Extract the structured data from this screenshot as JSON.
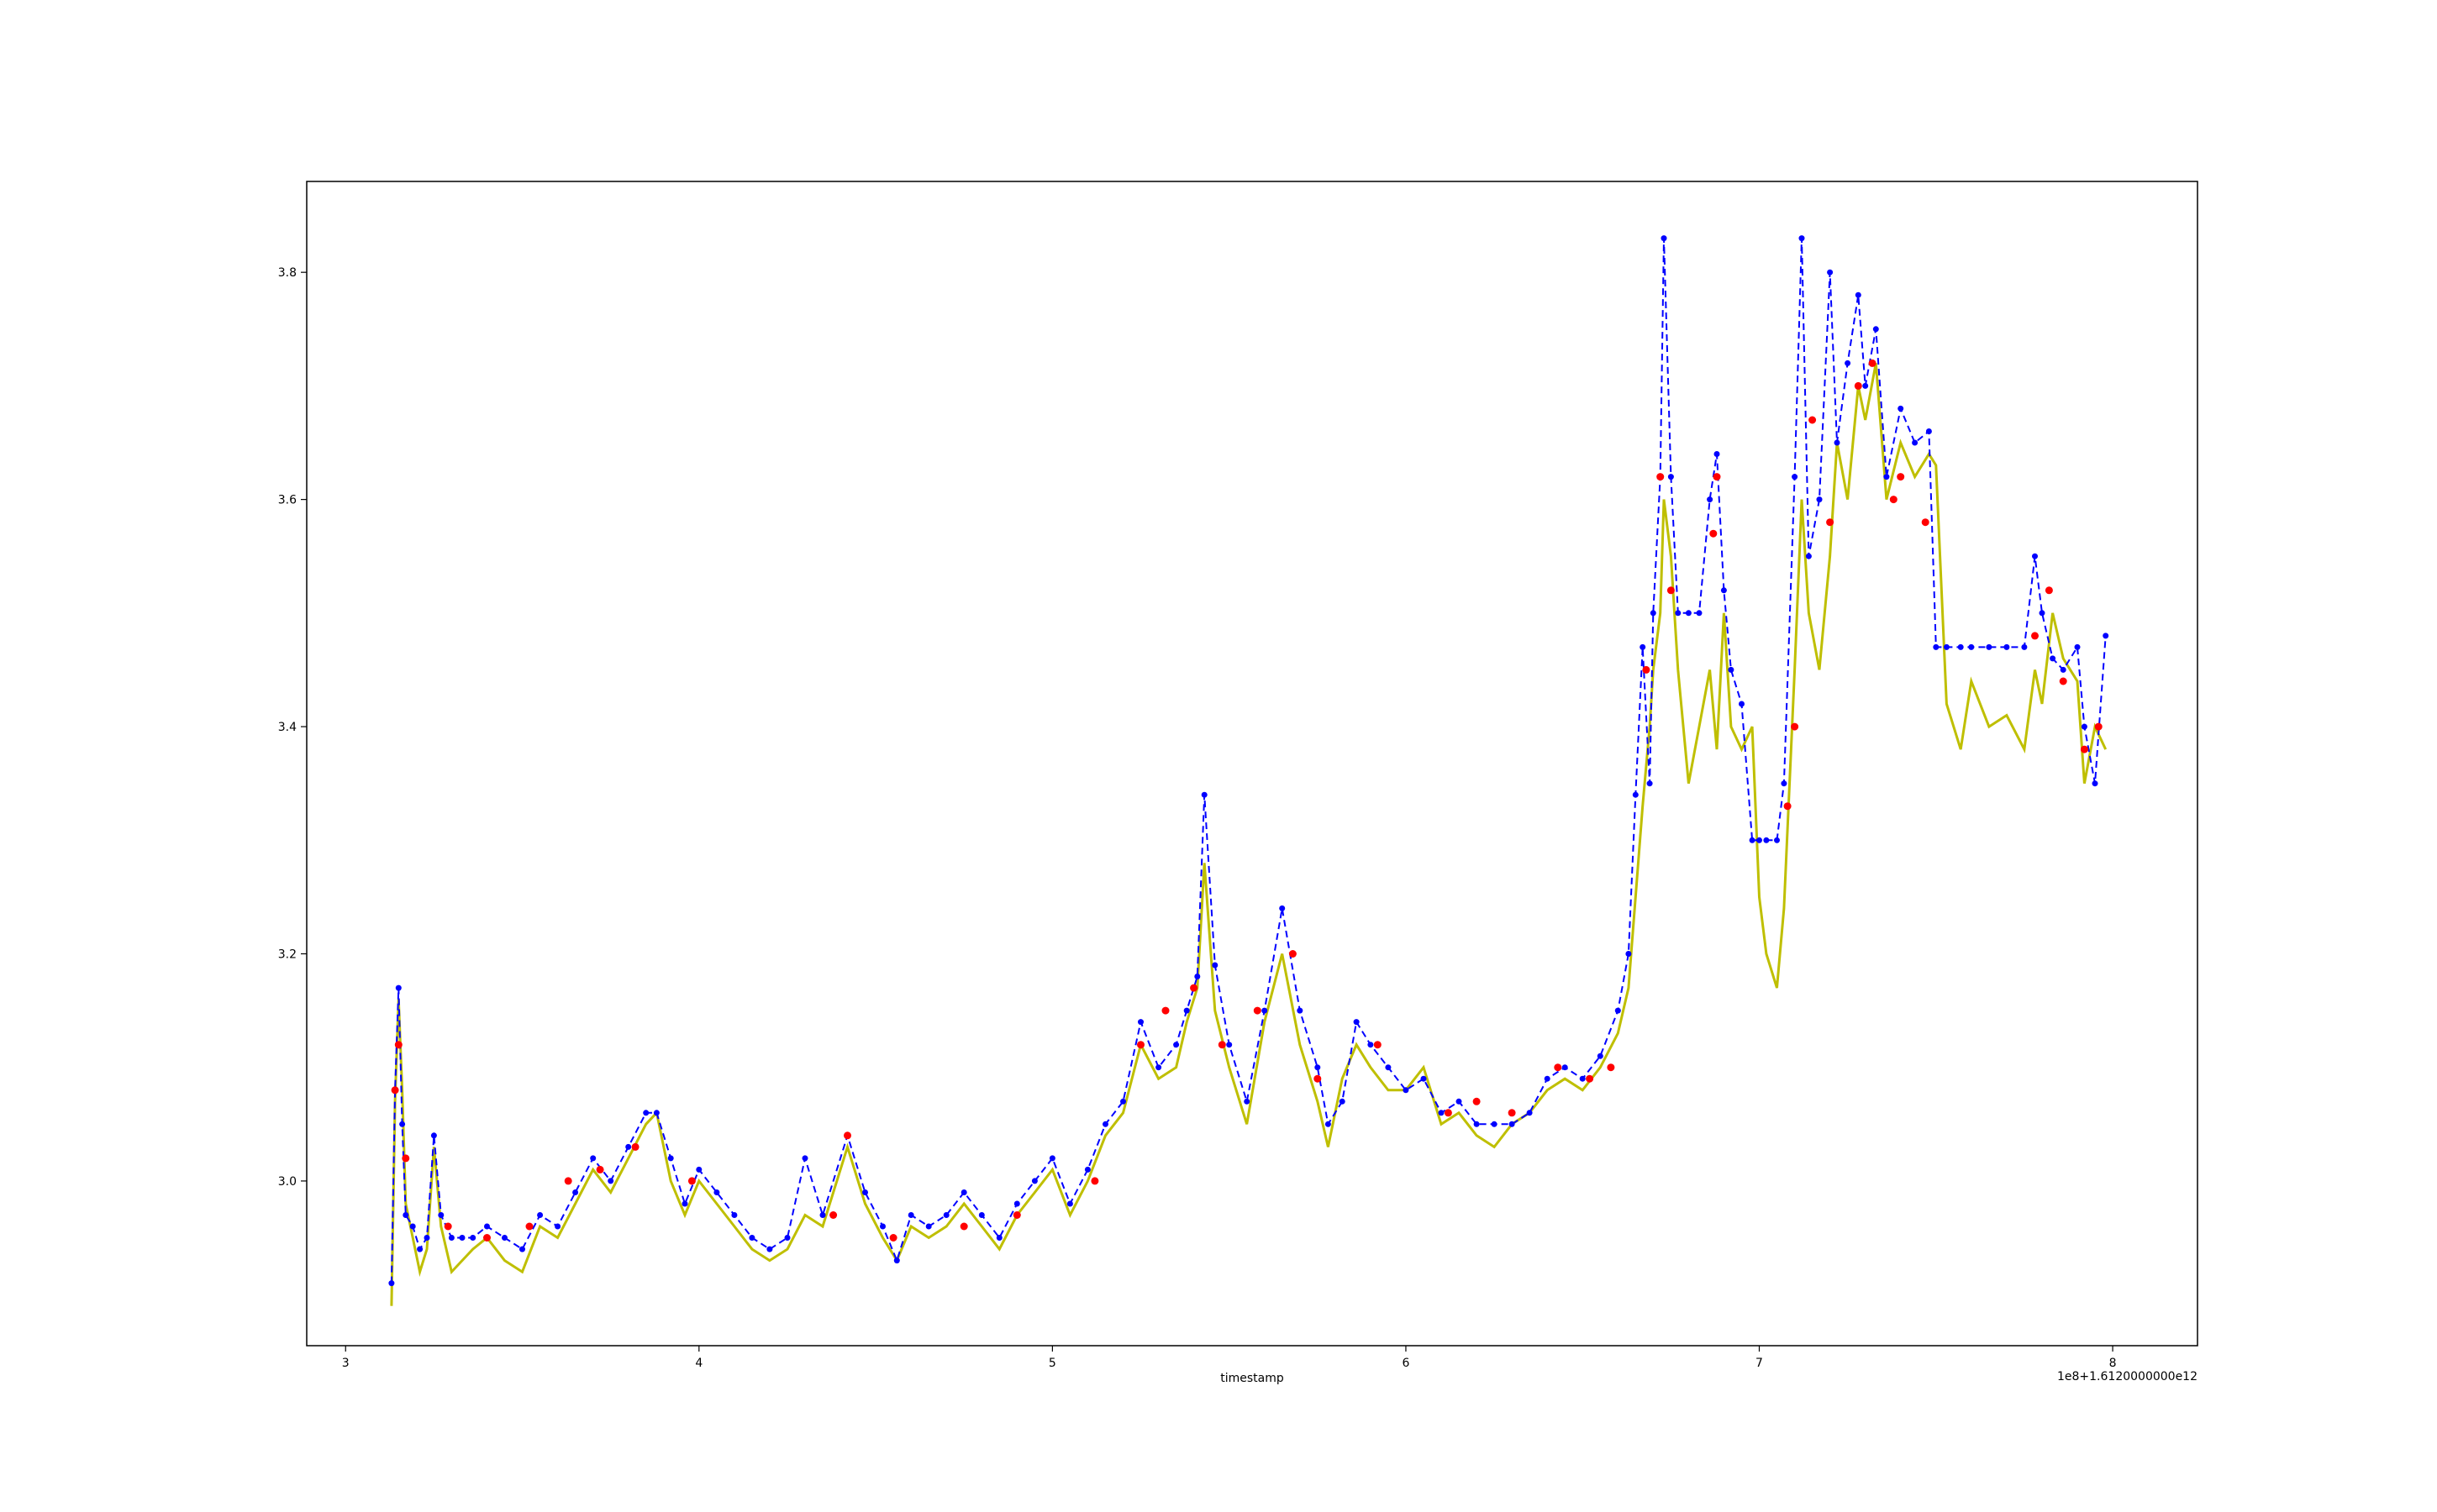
{
  "chart_data": {
    "type": "line",
    "title": "",
    "xlabel": "timestamp",
    "ylabel": "",
    "x_offset_label": "1e8+1.6120000000e12",
    "xlim": [
      2.89,
      8.24
    ],
    "ylim": [
      2.855,
      3.88
    ],
    "x_ticks": [
      3,
      4,
      5,
      6,
      7,
      8
    ],
    "x_tick_labels": [
      "3",
      "4",
      "5",
      "6",
      "7",
      "8"
    ],
    "y_ticks": [
      3.0,
      3.2,
      3.4,
      3.6,
      3.8
    ],
    "y_tick_labels": [
      "3.0",
      "3.2",
      "3.4",
      "3.6",
      "3.8"
    ],
    "grid": false,
    "legend": "none",
    "colors": {
      "raw": "#bfbf00",
      "stepped": "#0000ff",
      "red_markers": "#ff0000"
    },
    "series": [
      {
        "style": "solid",
        "color": "#bfbf00",
        "x": [
          3.13,
          3.14,
          3.15,
          3.16,
          3.17,
          3.19,
          3.21,
          3.23,
          3.25,
          3.27,
          3.3,
          3.33,
          3.36,
          3.4,
          3.45,
          3.5,
          3.55,
          3.6,
          3.65,
          3.7,
          3.75,
          3.8,
          3.85,
          3.88,
          3.92,
          3.96,
          4.0,
          4.05,
          4.1,
          4.15,
          4.2,
          4.25,
          4.3,
          4.35,
          4.42,
          4.47,
          4.52,
          4.56,
          4.6,
          4.65,
          4.7,
          4.75,
          4.8,
          4.85,
          4.9,
          4.95,
          5.0,
          5.05,
          5.1,
          5.15,
          5.2,
          5.25,
          5.3,
          5.35,
          5.38,
          5.41,
          5.43,
          5.46,
          5.5,
          5.55,
          5.6,
          5.65,
          5.7,
          5.75,
          5.78,
          5.82,
          5.86,
          5.9,
          5.95,
          6.0,
          6.05,
          6.1,
          6.15,
          6.2,
          6.25,
          6.3,
          6.35,
          6.4,
          6.45,
          6.5,
          6.55,
          6.6,
          6.63,
          6.65,
          6.67,
          6.69,
          6.7,
          6.72,
          6.73,
          6.75,
          6.77,
          6.8,
          6.83,
          6.86,
          6.88,
          6.9,
          6.92,
          6.95,
          6.98,
          7.0,
          7.02,
          7.05,
          7.07,
          7.1,
          7.12,
          7.14,
          7.17,
          7.2,
          7.22,
          7.25,
          7.28,
          7.3,
          7.33,
          7.36,
          7.4,
          7.44,
          7.48,
          7.5,
          7.53,
          7.57,
          7.6,
          7.65,
          7.7,
          7.75,
          7.78,
          7.8,
          7.83,
          7.86,
          7.9,
          7.92,
          7.95,
          7.98
        ],
        "y": [
          2.89,
          3.07,
          3.16,
          3.08,
          2.98,
          2.95,
          2.92,
          2.94,
          3.03,
          2.96,
          2.92,
          2.93,
          2.94,
          2.95,
          2.93,
          2.92,
          2.96,
          2.95,
          2.98,
          3.01,
          2.99,
          3.02,
          3.05,
          3.06,
          3.0,
          2.97,
          3.0,
          2.98,
          2.96,
          2.94,
          2.93,
          2.94,
          2.97,
          2.96,
          3.03,
          2.98,
          2.95,
          2.93,
          2.96,
          2.95,
          2.96,
          2.98,
          2.96,
          2.94,
          2.97,
          2.99,
          3.01,
          2.97,
          3.0,
          3.04,
          3.06,
          3.12,
          3.09,
          3.1,
          3.14,
          3.17,
          3.28,
          3.15,
          3.1,
          3.05,
          3.14,
          3.2,
          3.12,
          3.07,
          3.03,
          3.09,
          3.12,
          3.1,
          3.08,
          3.08,
          3.1,
          3.05,
          3.06,
          3.04,
          3.03,
          3.05,
          3.06,
          3.08,
          3.09,
          3.08,
          3.1,
          3.13,
          3.17,
          3.25,
          3.33,
          3.4,
          3.45,
          3.5,
          3.6,
          3.55,
          3.45,
          3.35,
          3.4,
          3.45,
          3.38,
          3.5,
          3.4,
          3.38,
          3.4,
          3.25,
          3.2,
          3.17,
          3.24,
          3.45,
          3.6,
          3.5,
          3.45,
          3.55,
          3.65,
          3.6,
          3.7,
          3.67,
          3.72,
          3.6,
          3.65,
          3.62,
          3.64,
          3.63,
          3.42,
          3.38,
          3.44,
          3.4,
          3.41,
          3.38,
          3.45,
          3.42,
          3.5,
          3.46,
          3.44,
          3.35,
          3.4,
          3.38
        ]
      },
      {
        "style": "dashed",
        "color": "#0000ff",
        "marker": "dot",
        "x": [
          3.13,
          3.14,
          3.15,
          3.16,
          3.17,
          3.19,
          3.21,
          3.23,
          3.25,
          3.27,
          3.3,
          3.33,
          3.36,
          3.4,
          3.45,
          3.5,
          3.55,
          3.6,
          3.65,
          3.7,
          3.75,
          3.8,
          3.85,
          3.88,
          3.92,
          3.96,
          4.0,
          4.05,
          4.1,
          4.15,
          4.2,
          4.25,
          4.3,
          4.35,
          4.42,
          4.47,
          4.52,
          4.56,
          4.6,
          4.65,
          4.7,
          4.75,
          4.8,
          4.85,
          4.9,
          4.95,
          5.0,
          5.05,
          5.1,
          5.15,
          5.2,
          5.25,
          5.3,
          5.35,
          5.38,
          5.41,
          5.43,
          5.46,
          5.5,
          5.55,
          5.6,
          5.65,
          5.7,
          5.75,
          5.78,
          5.82,
          5.86,
          5.9,
          5.95,
          6.0,
          6.05,
          6.1,
          6.15,
          6.2,
          6.25,
          6.3,
          6.35,
          6.4,
          6.45,
          6.5,
          6.55,
          6.6,
          6.63,
          6.65,
          6.67,
          6.69,
          6.7,
          6.72,
          6.73,
          6.75,
          6.77,
          6.8,
          6.83,
          6.86,
          6.88,
          6.9,
          6.92,
          6.95,
          6.98,
          7.0,
          7.02,
          7.05,
          7.07,
          7.1,
          7.12,
          7.14,
          7.17,
          7.2,
          7.22,
          7.25,
          7.28,
          7.3,
          7.33,
          7.36,
          7.4,
          7.44,
          7.48,
          7.5,
          7.53,
          7.57,
          7.6,
          7.65,
          7.7,
          7.75,
          7.78,
          7.8,
          7.83,
          7.86,
          7.9,
          7.92,
          7.95,
          7.98
        ],
        "y": [
          2.91,
          3.08,
          3.17,
          3.05,
          2.97,
          2.96,
          2.94,
          2.95,
          3.04,
          2.97,
          2.95,
          2.95,
          2.95,
          2.96,
          2.95,
          2.94,
          2.97,
          2.96,
          2.99,
          3.02,
          3.0,
          3.03,
          3.06,
          3.06,
          3.02,
          2.98,
          3.01,
          2.99,
          2.97,
          2.95,
          2.94,
          2.95,
          3.02,
          2.97,
          3.04,
          2.99,
          2.96,
          2.93,
          2.97,
          2.96,
          2.97,
          2.99,
          2.97,
          2.95,
          2.98,
          3.0,
          3.02,
          2.98,
          3.01,
          3.05,
          3.07,
          3.14,
          3.1,
          3.12,
          3.15,
          3.18,
          3.34,
          3.19,
          3.12,
          3.07,
          3.15,
          3.24,
          3.15,
          3.1,
          3.05,
          3.07,
          3.14,
          3.12,
          3.1,
          3.08,
          3.09,
          3.06,
          3.07,
          3.05,
          3.05,
          3.05,
          3.06,
          3.09,
          3.1,
          3.09,
          3.11,
          3.15,
          3.2,
          3.34,
          3.47,
          3.35,
          3.5,
          3.62,
          3.83,
          3.62,
          3.5,
          3.5,
          3.5,
          3.6,
          3.64,
          3.52,
          3.45,
          3.42,
          3.3,
          3.3,
          3.3,
          3.3,
          3.35,
          3.62,
          3.83,
          3.55,
          3.6,
          3.8,
          3.65,
          3.72,
          3.78,
          3.7,
          3.75,
          3.62,
          3.68,
          3.65,
          3.66,
          3.47,
          3.47,
          3.47,
          3.47,
          3.47,
          3.47,
          3.47,
          3.55,
          3.5,
          3.46,
          3.45,
          3.47,
          3.4,
          3.35,
          3.48
        ]
      }
    ],
    "red_marker_points": {
      "x": [
        3.14,
        3.15,
        3.17,
        3.29,
        3.4,
        3.52,
        3.63,
        3.72,
        3.82,
        3.98,
        4.38,
        4.42,
        4.55,
        4.75,
        4.9,
        5.12,
        5.25,
        5.32,
        5.4,
        5.48,
        5.58,
        5.68,
        5.75,
        5.92,
        6.12,
        6.2,
        6.3,
        6.43,
        6.52,
        6.58,
        6.68,
        6.72,
        6.75,
        6.87,
        6.88,
        7.08,
        7.1,
        7.15,
        7.2,
        7.28,
        7.32,
        7.38,
        7.4,
        7.47,
        7.78,
        7.82,
        7.86,
        7.92,
        7.96
      ],
      "y": [
        3.08,
        3.12,
        3.02,
        2.96,
        2.95,
        2.96,
        3.0,
        3.01,
        3.03,
        3.0,
        2.97,
        3.04,
        2.95,
        2.96,
        2.97,
        3.0,
        3.12,
        3.15,
        3.17,
        3.12,
        3.15,
        3.2,
        3.09,
        3.12,
        3.06,
        3.07,
        3.06,
        3.1,
        3.09,
        3.1,
        3.45,
        3.62,
        3.52,
        3.57,
        3.62,
        3.33,
        3.4,
        3.67,
        3.58,
        3.7,
        3.72,
        3.6,
        3.62,
        3.58,
        3.48,
        3.52,
        3.44,
        3.38,
        3.4
      ]
    }
  }
}
